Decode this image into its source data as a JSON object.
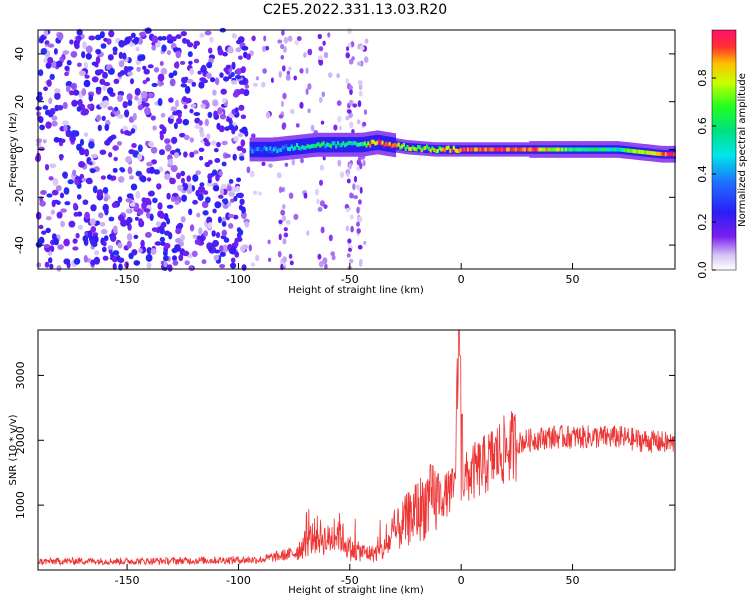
{
  "chart_data": [
    {
      "type": "heatmap",
      "title": "C2E5.2022.331.13.03.R20",
      "xlabel": "Height of straight line (km)",
      "ylabel": "Frequency (Hz)",
      "xlim": [
        -190,
        96
      ],
      "ylim": [
        -50,
        50
      ],
      "x_ticks": [
        -150,
        -100,
        -50,
        0,
        50
      ],
      "y_ticks": [
        -40,
        -20,
        0,
        20,
        40
      ],
      "colorbar": {
        "label": "Normalized spectral amplitude",
        "range": [
          0,
          1
        ],
        "ticks": [
          "0.0",
          "0.2",
          "0.4",
          "0.6",
          "0.8"
        ]
      },
      "grid": false,
      "regions": [
        {
          "name": "noise",
          "x_range": [
            -190,
            -96
          ],
          "freq_range": [
            -50,
            50
          ],
          "level": "scattered low amplitude (0.1-0.35)"
        },
        {
          "name": "sparse",
          "x_range": [
            -96,
            -42
          ],
          "freq_range": [
            -50,
            50
          ],
          "level": "sparse low amplitude"
        },
        {
          "name": "signal",
          "x_range": [
            -96,
            96
          ],
          "freq_center": 0,
          "level": "peak amplitude 0.9-1.0 near 0 Hz"
        }
      ],
      "signal_ridge": [
        {
          "x": -95,
          "freq": 0,
          "amp": 0.35
        },
        {
          "x": -85,
          "freq": 0,
          "amp": 0.4
        },
        {
          "x": -75,
          "freq": 1,
          "amp": 0.5
        },
        {
          "x": -65,
          "freq": 2,
          "amp": 0.55
        },
        {
          "x": -55,
          "freq": 2,
          "amp": 0.5
        },
        {
          "x": -45,
          "freq": 2,
          "amp": 0.6
        },
        {
          "x": -38,
          "freq": 3,
          "amp": 0.95
        },
        {
          "x": -25,
          "freq": 1,
          "amp": 0.7
        },
        {
          "x": -12,
          "freq": 0,
          "amp": 0.75
        },
        {
          "x": 0,
          "freq": 0,
          "amp": 0.95
        },
        {
          "x": 15,
          "freq": 0,
          "amp": 0.95
        },
        {
          "x": 30,
          "freq": 0,
          "amp": 0.9
        },
        {
          "x": 50,
          "freq": 0,
          "amp": 0.6
        },
        {
          "x": 70,
          "freq": 0,
          "amp": 0.55
        },
        {
          "x": 90,
          "freq": -2,
          "amp": 0.9
        }
      ]
    },
    {
      "type": "line",
      "xlabel": "Height of straight line (km)",
      "ylabel": "SNR (10 * v/v)",
      "xlim": [
        -190,
        96
      ],
      "ylim": [
        0,
        3700
      ],
      "x_ticks": [
        -150,
        -100,
        -50,
        0,
        50
      ],
      "y_ticks": [
        1000,
        2000,
        3000
      ],
      "grid": false,
      "series": [
        {
          "color": "#ee3333",
          "x": [
            -190,
            -170,
            -150,
            -130,
            -110,
            -90,
            -75,
            -70,
            -65,
            -60,
            -55,
            -50,
            -45,
            -40,
            -35,
            -30,
            -25,
            -20,
            -15,
            -10,
            -5,
            -3,
            -1,
            0,
            2,
            5,
            10,
            15,
            20,
            25,
            30,
            40,
            50,
            60,
            70,
            80,
            96
          ],
          "y": [
            130,
            140,
            135,
            140,
            150,
            160,
            260,
            400,
            550,
            450,
            600,
            300,
            280,
            250,
            300,
            550,
            750,
            900,
            1050,
            1100,
            1200,
            1250,
            3500,
            1300,
            1400,
            1500,
            1600,
            1750,
            1850,
            1950,
            2000,
            2050,
            2050,
            2050,
            2050,
            2000,
            1950
          ]
        }
      ]
    }
  ]
}
